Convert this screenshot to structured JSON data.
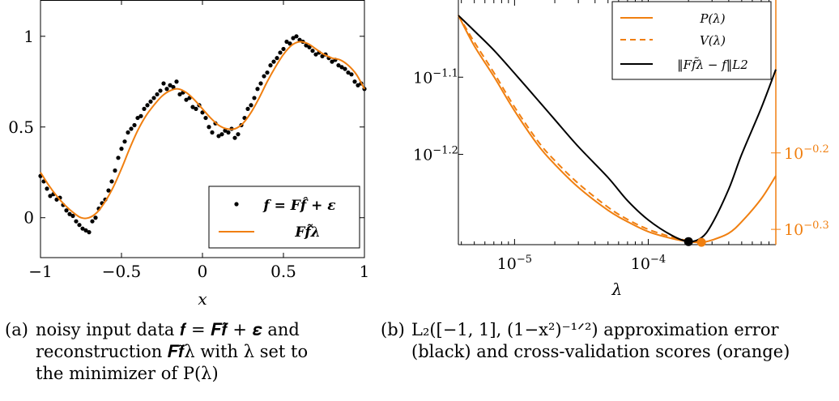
{
  "colors": {
    "data": "#000000",
    "fit": "#f07f10",
    "axis": "#000000"
  },
  "chart_data": [
    {
      "type": "scatter",
      "xlabel": "x",
      "ylabel": "",
      "xlim": [
        -1,
        1
      ],
      "ylim": [
        -0.22,
        1.2
      ],
      "x_ticks": [
        -1,
        -0.5,
        0,
        0.5,
        1
      ],
      "x_tick_labels": [
        "−1",
        "−0.5",
        "0",
        "0.5",
        "1"
      ],
      "y_ticks": [
        0,
        0.5,
        1
      ],
      "y_tick_labels": [
        "0",
        "0.5",
        "1"
      ],
      "legend_position": "bottom-right",
      "series": [
        {
          "name": "f = Ff̂ + ε",
          "style": "points",
          "color": "#000000",
          "x": [
            -1.0,
            -0.98,
            -0.96,
            -0.94,
            -0.92,
            -0.9,
            -0.88,
            -0.86,
            -0.84,
            -0.82,
            -0.8,
            -0.78,
            -0.76,
            -0.74,
            -0.72,
            -0.7,
            -0.68,
            -0.66,
            -0.64,
            -0.62,
            -0.6,
            -0.58,
            -0.56,
            -0.54,
            -0.52,
            -0.5,
            -0.48,
            -0.46,
            -0.44,
            -0.42,
            -0.4,
            -0.38,
            -0.36,
            -0.34,
            -0.32,
            -0.3,
            -0.28,
            -0.26,
            -0.24,
            -0.22,
            -0.2,
            -0.18,
            -0.16,
            -0.14,
            -0.12,
            -0.1,
            -0.08,
            -0.06,
            -0.04,
            -0.02,
            0.0,
            0.02,
            0.04,
            0.06,
            0.08,
            0.1,
            0.12,
            0.14,
            0.16,
            0.18,
            0.2,
            0.22,
            0.24,
            0.26,
            0.28,
            0.3,
            0.32,
            0.34,
            0.36,
            0.38,
            0.4,
            0.42,
            0.44,
            0.46,
            0.48,
            0.5,
            0.52,
            0.54,
            0.56,
            0.58,
            0.6,
            0.62,
            0.64,
            0.66,
            0.68,
            0.7,
            0.72,
            0.74,
            0.76,
            0.78,
            0.8,
            0.82,
            0.84,
            0.86,
            0.88,
            0.9,
            0.92,
            0.94,
            0.96,
            0.98,
            1.0
          ],
          "y": [
            0.23,
            0.2,
            0.16,
            0.12,
            0.13,
            0.1,
            0.11,
            0.07,
            0.04,
            0.02,
            0.01,
            -0.02,
            -0.04,
            -0.06,
            -0.07,
            -0.08,
            -0.02,
            0.0,
            0.05,
            0.08,
            0.1,
            0.15,
            0.2,
            0.26,
            0.33,
            0.38,
            0.42,
            0.47,
            0.49,
            0.51,
            0.55,
            0.56,
            0.6,
            0.62,
            0.64,
            0.66,
            0.68,
            0.7,
            0.74,
            0.71,
            0.73,
            0.72,
            0.75,
            0.68,
            0.69,
            0.65,
            0.66,
            0.61,
            0.6,
            0.62,
            0.58,
            0.55,
            0.5,
            0.47,
            0.52,
            0.45,
            0.46,
            0.48,
            0.47,
            0.49,
            0.44,
            0.46,
            0.51,
            0.55,
            0.6,
            0.62,
            0.66,
            0.71,
            0.74,
            0.78,
            0.8,
            0.84,
            0.86,
            0.88,
            0.91,
            0.93,
            0.97,
            0.96,
            0.99,
            1.0,
            0.98,
            0.97,
            0.95,
            0.94,
            0.92,
            0.9,
            0.91,
            0.89,
            0.9,
            0.88,
            0.86,
            0.87,
            0.84,
            0.83,
            0.82,
            0.8,
            0.79,
            0.75,
            0.73,
            0.74,
            0.71
          ]
        },
        {
          "name": "Ff̃λ",
          "style": "line",
          "color": "#f07f10",
          "x": [
            -1.0,
            -0.95,
            -0.9,
            -0.85,
            -0.8,
            -0.75,
            -0.7,
            -0.65,
            -0.6,
            -0.55,
            -0.5,
            -0.45,
            -0.4,
            -0.35,
            -0.3,
            -0.25,
            -0.2,
            -0.15,
            -0.1,
            -0.05,
            0.0,
            0.05,
            0.1,
            0.15,
            0.2,
            0.25,
            0.3,
            0.35,
            0.4,
            0.45,
            0.5,
            0.55,
            0.6,
            0.65,
            0.7,
            0.75,
            0.8,
            0.85,
            0.9,
            0.95,
            1.0
          ],
          "y": [
            0.25,
            0.18,
            0.12,
            0.07,
            0.03,
            0.0,
            0.0,
            0.03,
            0.09,
            0.17,
            0.27,
            0.38,
            0.48,
            0.56,
            0.62,
            0.67,
            0.7,
            0.71,
            0.69,
            0.65,
            0.6,
            0.55,
            0.51,
            0.49,
            0.49,
            0.52,
            0.58,
            0.66,
            0.75,
            0.83,
            0.9,
            0.95,
            0.97,
            0.96,
            0.93,
            0.9,
            0.88,
            0.87,
            0.84,
            0.79,
            0.71
          ]
        }
      ]
    },
    {
      "type": "line",
      "xlabel": "λ",
      "ylabel": "",
      "x_scale": "log",
      "y_scale": "log",
      "xlim": [
        3.8e-06,
        0.0009
      ],
      "x_ticks": [
        1e-05,
        0.0001
      ],
      "x_tick_labels": [
        "10",
        "10"
      ],
      "x_tick_exponents": [
        "−5",
        "−4"
      ],
      "left_axis": {
        "scale": "log",
        "ylim": [
          -1.317,
          -1.0
        ],
        "tick_exponents": [
          -1.1,
          -1.2
        ],
        "tick_labels": [
          "10",
          "10"
        ],
        "tick_exponent_labels": [
          "−1.1",
          "−1.2"
        ],
        "color": "#000000"
      },
      "right_axis": {
        "scale": "log",
        "ylim": [
          -0.32,
          -0.0
        ],
        "tick_exponents": [
          -0.2,
          -0.3
        ],
        "tick_labels": [
          "10",
          "10"
        ],
        "tick_exponent_labels": [
          "−0.2",
          "−0.3"
        ],
        "color": "#f07f10"
      },
      "legend_position": "top-right",
      "series": [
        {
          "name": "P(λ)",
          "axis": "right",
          "style": "solid",
          "color": "#f07f10",
          "x": [
            3.8e-06,
            5e-06,
            7e-06,
            1e-05,
            1.5e-05,
            2e-05,
            3e-05,
            5e-05,
            7e-05,
            0.0001,
            0.00015,
            0.0002,
            0.00025,
            0.0003,
            0.0004,
            0.0005,
            0.0007,
            0.0009
          ],
          "y": [
            -0.02,
            -0.06,
            -0.1,
            -0.145,
            -0.19,
            -0.215,
            -0.245,
            -0.275,
            -0.29,
            -0.303,
            -0.312,
            -0.316,
            -0.317,
            -0.314,
            -0.305,
            -0.29,
            -0.26,
            -0.23
          ]
        },
        {
          "name": "V(λ)",
          "axis": "right",
          "style": "dashed",
          "color": "#f07f10",
          "x": [
            3.8e-06,
            5e-06,
            7e-06,
            1e-05,
            1.5e-05,
            2e-05,
            3e-05,
            5e-05,
            7e-05,
            0.0001,
            0.00015,
            0.0002,
            0.00025
          ],
          "y": [
            -0.02,
            -0.055,
            -0.095,
            -0.14,
            -0.185,
            -0.21,
            -0.24,
            -0.271,
            -0.287,
            -0.3,
            -0.31,
            -0.315,
            -0.317
          ]
        },
        {
          "name": "‖Ff̃λ − f‖L2",
          "axis": "left",
          "style": "solid",
          "color": "#000000",
          "x": [
            3.8e-06,
            5e-06,
            7e-06,
            1e-05,
            1.5e-05,
            2e-05,
            3e-05,
            5e-05,
            7e-05,
            0.0001,
            0.00015,
            0.0002,
            0.00025,
            0.0003,
            0.0004,
            0.0005,
            0.0007,
            0.0009
          ],
          "y": [
            -1.02,
            -1.04,
            -1.065,
            -1.095,
            -1.13,
            -1.155,
            -1.19,
            -1.23,
            -1.26,
            -1.285,
            -1.305,
            -1.313,
            -1.308,
            -1.29,
            -1.245,
            -1.2,
            -1.14,
            -1.09
          ]
        }
      ],
      "markers": [
        {
          "name": "minimizer-error",
          "color": "#000000",
          "x": 0.0002,
          "y": -1.313,
          "axis": "left"
        },
        {
          "name": "minimizer-P",
          "color": "#f07f10",
          "x": 0.00025,
          "y": -0.317,
          "axis": "right"
        }
      ]
    }
  ],
  "captions": {
    "a": {
      "tag": "(a)",
      "line1": "noisy input data 𝒇 = 𝑭𝒇̂ + 𝜺 and",
      "line2": "reconstruction 𝑭𝒇̃λ with λ set to",
      "line3": "the minimizer of P(λ)"
    },
    "b": {
      "tag": "(b)",
      "line1": "L₂([−1, 1], (1−x²)⁻¹ᐟ²) approximation error",
      "line2": "(black) and cross-validation scores (orange)"
    }
  }
}
